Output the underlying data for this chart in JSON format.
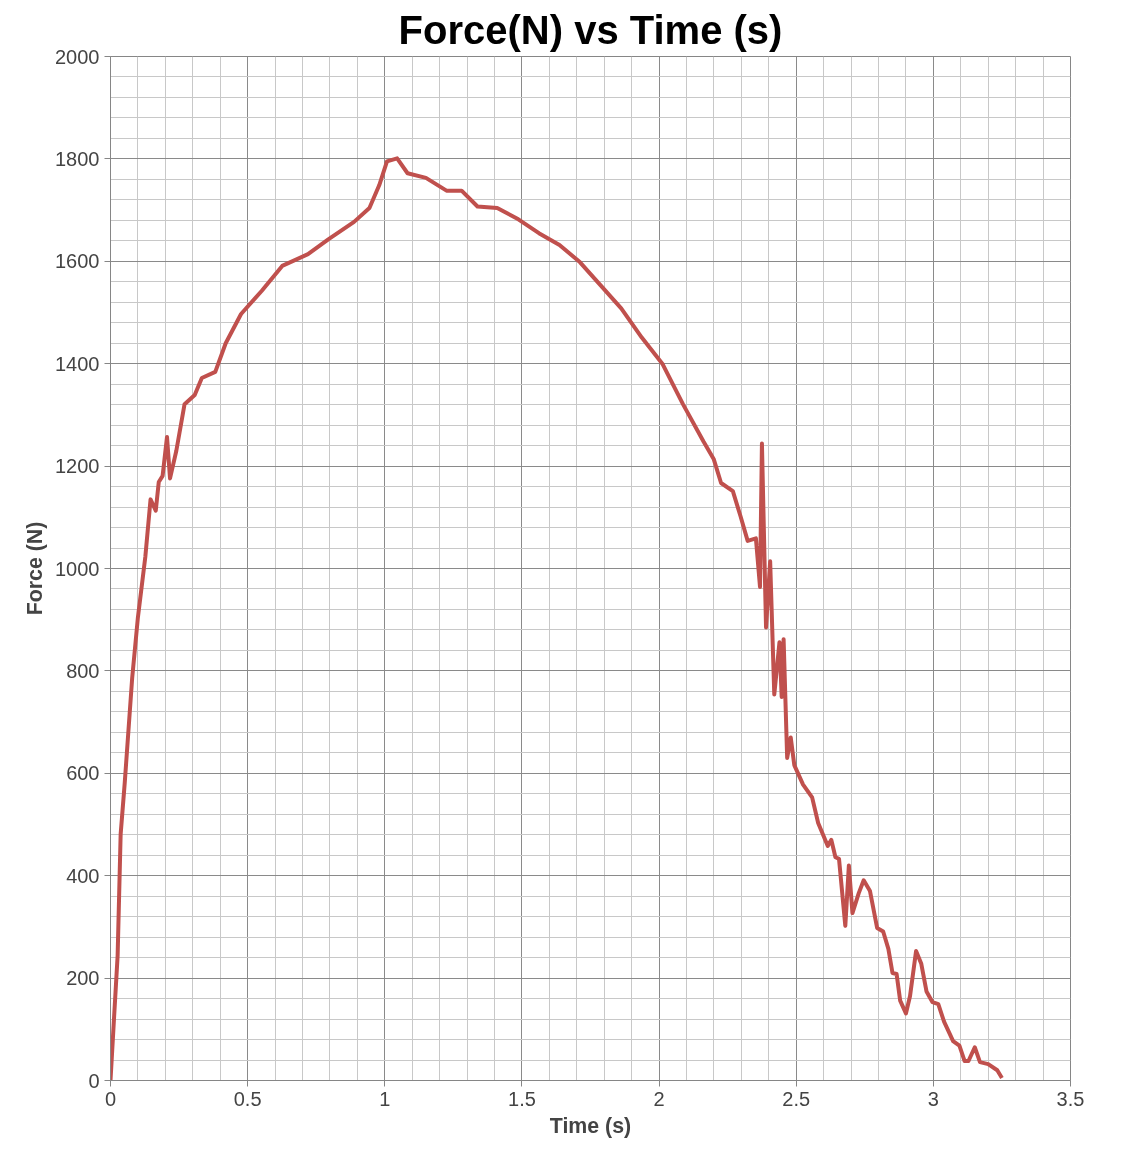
{
  "chart_data": {
    "type": "line",
    "title": "Force(N) vs Time (s)",
    "xlabel": "Time (s)",
    "ylabel": "Force (N)",
    "xlim": [
      0,
      3.5
    ],
    "xticks": [
      0,
      0.5,
      1,
      1.5,
      2,
      2.5,
      3,
      3.5
    ],
    "ylim": [
      0,
      2000
    ],
    "yticks": [
      0,
      200,
      400,
      600,
      800,
      1000,
      1200,
      1400,
      1600,
      1800,
      2000
    ],
    "grid": true,
    "marker": "none",
    "line_style": "solid",
    "series": [
      {
        "color": "#c0504d",
        "x": [
          0,
          0.015,
          0.026,
          0.037,
          0.052,
          0.079,
          0.1,
          0.127,
          0.146,
          0.165,
          0.176,
          0.19,
          0.206,
          0.217,
          0.24,
          0.27,
          0.307,
          0.333,
          0.382,
          0.42,
          0.476,
          0.551,
          0.626,
          0.72,
          0.794,
          0.888,
          0.944,
          0.98,
          1.008,
          1.045,
          1.083,
          1.15,
          1.225,
          1.28,
          1.338,
          1.41,
          1.487,
          1.562,
          1.637,
          1.712,
          1.787,
          1.862,
          1.937,
          2.012,
          2.087,
          2.162,
          2.199,
          2.226,
          2.269,
          2.297,
          2.323,
          2.353,
          2.368,
          2.375,
          2.39,
          2.405,
          2.42,
          2.439,
          2.447,
          2.454,
          2.467,
          2.48,
          2.493,
          2.525,
          2.558,
          2.58,
          2.615,
          2.628,
          2.643,
          2.656,
          2.679,
          2.692,
          2.705,
          2.728,
          2.746,
          2.769,
          2.795,
          2.817,
          2.836,
          2.851,
          2.866,
          2.879,
          2.9,
          2.915,
          2.937,
          2.956,
          2.975,
          2.997,
          3.018,
          3.039,
          3.072,
          3.095,
          3.114,
          3.128,
          3.151,
          3.17,
          3.2,
          3.233,
          3.25
        ],
        "values": [
          0,
          142,
          244,
          481,
          582,
          786,
          905,
          1023,
          1135,
          1113,
          1169,
          1181,
          1257,
          1176,
          1230,
          1321,
          1339,
          1372,
          1384,
          1440,
          1497,
          1542,
          1591,
          1614,
          1643,
          1677,
          1704,
          1749,
          1795,
          1801,
          1772,
          1763,
          1738,
          1738,
          1707,
          1704,
          1682,
          1655,
          1632,
          1598,
          1553,
          1508,
          1451,
          1400,
          1321,
          1248,
          1214,
          1167,
          1151,
          1102,
          1054,
          1059,
          964,
          1244,
          885,
          1014,
          754,
          856,
          749,
          862,
          630,
          670,
          616,
          578,
          553,
          503,
          458,
          470,
          436,
          433,
          302,
          420,
          327,
          366,
          391,
          370,
          298,
          291,
          257,
          210,
          208,
          156,
          131,
          165,
          253,
          228,
          174,
          153,
          149,
          115,
          77,
          68,
          38,
          38,
          65,
          36,
          32,
          20,
          5
        ]
      }
    ]
  }
}
